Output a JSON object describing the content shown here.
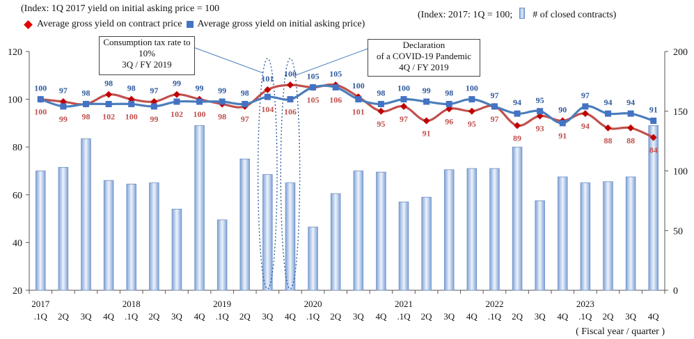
{
  "header": {
    "index_note": "(Index: 1Q 2017 yield on initial asking price = 100",
    "right_note_a": "(Index: 2017: 1Q = 100;",
    "right_note_b": "# of closed contracts)",
    "legend_contract": "Average gross yield on contract price",
    "legend_asking": "Average gross yield on initial asking price)"
  },
  "annotations": {
    "tax_line1": "Consumption tax rate to",
    "tax_line2": "10%",
    "tax_line3": "3Q / FY 2019",
    "covid_line1": "Declaration",
    "covid_line2": "of a COVID-19 Pandemic",
    "covid_line3": "4Q / FY 2019"
  },
  "colors": {
    "contract": "#c0504d",
    "contract_marker": "#c00000",
    "asking": "#4a7ebb",
    "asking_marker": "#4472c4",
    "bar": "#9bbbe6",
    "contract_label": "#c0504d",
    "asking_label": "#2e5a9e"
  },
  "chart_data": {
    "type": "bar+line",
    "quarters": [
      ".1Q",
      "2Q",
      "3Q",
      "4Q",
      ".1Q",
      "2Q",
      "3Q",
      "4Q",
      ".1Q",
      "2Q",
      "3Q",
      "4Q",
      ".1Q",
      "2Q",
      "3Q",
      "4Q",
      ".1Q",
      "2Q",
      "3Q",
      "4Q",
      ".1Q",
      "2Q",
      "3Q",
      "4Q",
      ".1Q",
      "2Q",
      "3Q",
      "4Q"
    ],
    "years": [
      "2017",
      "2018",
      "2019",
      "2020",
      "2021",
      "2022",
      "2023"
    ],
    "xlabel": "( Fiscal year / quarter )",
    "left_axis": {
      "min": 20,
      "max": 120,
      "ticks": [
        20,
        40,
        60,
        80,
        100,
        120
      ]
    },
    "right_axis": {
      "min": 0,
      "max": 200,
      "ticks": [
        0,
        50,
        100,
        150,
        200
      ]
    },
    "series": [
      {
        "name": "Average gross yield on initial asking price",
        "axis": "left",
        "marker": "square",
        "values": [
          100,
          97,
          98,
          98,
          98,
          97,
          99,
          99,
          99,
          98,
          101,
          100,
          105,
          105,
          100,
          98,
          100,
          99,
          98,
          100,
          97,
          94,
          95,
          90,
          97,
          94,
          94,
          91
        ]
      },
      {
        "name": "Average gross yield on contract price",
        "axis": "left",
        "marker": "diamond",
        "values": [
          100,
          99,
          98,
          102,
          100,
          99,
          102,
          100,
          98,
          97,
          104,
          106,
          105,
          106,
          101,
          95,
          97,
          91,
          96,
          95,
          97,
          89,
          93,
          91,
          94,
          88,
          88,
          84
        ]
      },
      {
        "name": "# of closed contracts",
        "axis": "right",
        "type": "bar",
        "values": [
          100,
          103,
          127,
          92,
          89,
          90,
          68,
          138,
          59,
          110,
          97,
          90,
          53,
          81,
          100,
          99,
          74,
          78,
          101,
          102,
          102,
          120,
          75,
          95,
          90,
          91,
          95,
          138
        ]
      }
    ]
  }
}
